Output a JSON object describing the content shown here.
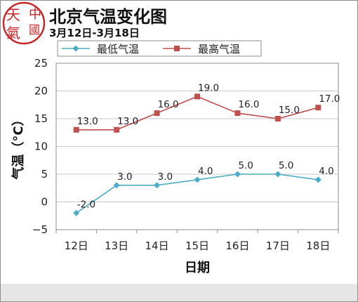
{
  "header": {
    "title": "北京气温变化图",
    "subtitle": "3月12日-3月18日",
    "logo_text": [
      "中",
      "國",
      "天",
      "氣"
    ]
  },
  "colors": {
    "low": "#4bacc6",
    "high": "#c0504d",
    "grid": "#c8c8c8",
    "logo": "#c62828"
  },
  "chart_data": {
    "type": "line",
    "categories": [
      "12日",
      "13日",
      "14日",
      "15日",
      "16日",
      "17日",
      "18日"
    ],
    "series": [
      {
        "name": "最低气温",
        "values": [
          -2.0,
          3.0,
          3.0,
          4.0,
          5.0,
          5.0,
          4.0
        ],
        "marker": "diamond"
      },
      {
        "name": "最高气温",
        "values": [
          13.0,
          13.0,
          16.0,
          19.0,
          16.0,
          15.0,
          17.0
        ],
        "marker": "square"
      }
    ],
    "data_labels": {
      "low": [
        "-2.0",
        "3.0",
        "3.0",
        "4.0",
        "5.0",
        "5.0",
        "4.0"
      ],
      "high": [
        "13.0",
        "13.0",
        "16.0",
        "19.0",
        "16.0",
        "15.0",
        "17.0"
      ]
    },
    "xlabel": "日期",
    "ylabel": "气温（°C）",
    "ylim": [
      -5,
      25
    ],
    "yticks": [
      -5,
      0,
      5,
      10,
      15,
      20,
      25
    ],
    "ytick_labels": [
      "−5",
      "0",
      "5",
      "10",
      "15",
      "20",
      "25"
    ],
    "grid": "horizontal",
    "legend_position": "top"
  }
}
